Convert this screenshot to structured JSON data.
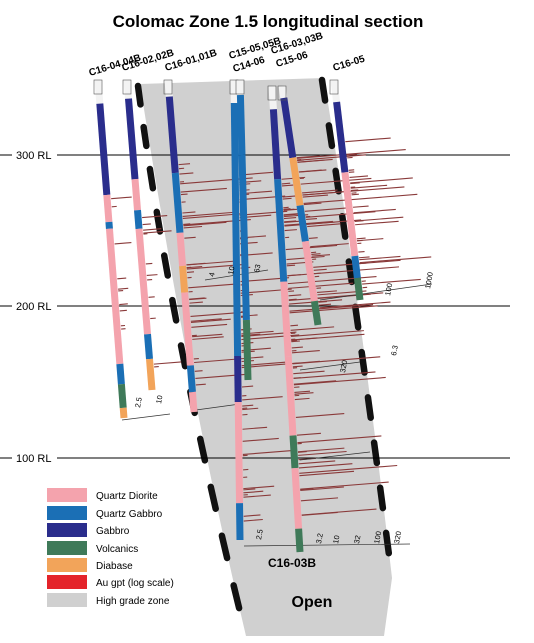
{
  "title": "Colomac Zone 1.5 longitudinal section",
  "colors": {
    "quartz_diorite": "#f4a3ad",
    "quartz_gabbro": "#1b6fb5",
    "gabbro": "#2a2d8c",
    "volcanics": "#3f7a59",
    "diabase": "#f2a45a",
    "au": "#e4232a",
    "au_bar": "#8a3a3a",
    "high_grade_zone": "#d0d0d0",
    "rl_line": "#000000"
  },
  "rl_levels": [
    {
      "label": "300 RL"
    },
    {
      "label": "200 RL"
    },
    {
      "label": "100 RL"
    }
  ],
  "hole_labels": [
    "C16-04,04B",
    "C16-02,02B",
    "C16-01,01B",
    "C15-05,05B",
    "C14-06",
    "C16-03,03B",
    "C15-06",
    "C16-05"
  ],
  "annotations": {
    "callout": "C16-03B",
    "open": "Open"
  },
  "legend": [
    {
      "label": "Quartz Diorite",
      "color": "#f4a3ad"
    },
    {
      "label": "Quartz Gabbro",
      "color": "#1b6fb5"
    },
    {
      "label": "Gabbro",
      "color": "#2a2d8c"
    },
    {
      "label": "Volcanics",
      "color": "#3f7a59"
    },
    {
      "label": "Diabase",
      "color": "#f2a45a"
    },
    {
      "label": "Au gpt (log scale)",
      "color": "#e4232a"
    },
    {
      "label": "High grade zone",
      "color": "#d0d0d0"
    }
  ],
  "scale_ticks": [
    "2.5",
    "10",
    "4",
    "10",
    "63",
    "320",
    "100",
    "1000",
    "6.3",
    "2.5",
    "3.2",
    "10",
    "32",
    "100",
    "320"
  ]
}
